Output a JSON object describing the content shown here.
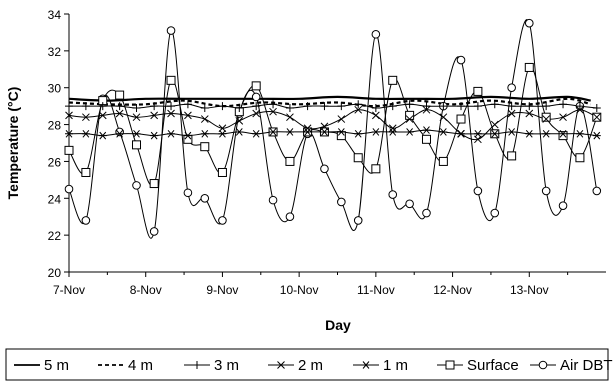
{
  "chart_data": {
    "type": "line",
    "title": "",
    "xlabel": "Day",
    "ylabel": "Temperature (°C)",
    "ylim": [
      20,
      34
    ],
    "yticks": [
      20,
      22,
      24,
      26,
      28,
      30,
      32,
      34
    ],
    "xlim": [
      7,
      14
    ],
    "xticks": [
      {
        "x": 7,
        "label": "7-Nov"
      },
      {
        "x": 8,
        "label": "8-Nov"
      },
      {
        "x": 9,
        "label": "9-Nov"
      },
      {
        "x": 10,
        "label": "10-Nov"
      },
      {
        "x": 11,
        "label": "11-Nov"
      },
      {
        "x": 12,
        "label": "12-Nov"
      },
      {
        "x": 13,
        "label": "13-Nov"
      }
    ],
    "grid": false,
    "legend_position": "bottom",
    "series": [
      {
        "name": "5 m",
        "style": "solid",
        "marker": "none",
        "width": 2.2,
        "x": [
          7.0,
          7.5,
          8.0,
          8.5,
          9.0,
          9.5,
          10.0,
          10.5,
          11.0,
          11.5,
          12.0,
          12.5,
          13.0,
          13.5,
          13.8
        ],
        "y": [
          29.4,
          29.3,
          29.4,
          29.4,
          29.4,
          29.4,
          29.4,
          29.5,
          29.4,
          29.4,
          29.4,
          29.5,
          29.4,
          29.5,
          29.3
        ]
      },
      {
        "name": "4 m",
        "style": "dashed",
        "marker": "none",
        "width": 2.2,
        "x": [
          7.0,
          7.5,
          8.0,
          8.5,
          9.0,
          9.5,
          10.0,
          10.5,
          11.0,
          11.5,
          12.0,
          12.5,
          13.0,
          13.5,
          13.8
        ],
        "y": [
          29.2,
          29.1,
          29.1,
          29.3,
          29.0,
          29.2,
          29.1,
          29.2,
          29.0,
          29.3,
          29.1,
          29.3,
          29.1,
          29.4,
          29.1
        ]
      },
      {
        "name": "3 m",
        "style": "solid",
        "marker": "plus",
        "width": 1,
        "x": [
          7.0,
          7.22,
          7.44,
          7.66,
          7.88,
          8.11,
          8.33,
          8.55,
          8.77,
          9.0,
          9.22,
          9.44,
          9.66,
          9.88,
          10.11,
          10.33,
          10.55,
          10.77,
          11.0,
          11.22,
          11.44,
          11.66,
          11.88,
          12.11,
          12.33,
          12.55,
          12.77,
          13.0,
          13.22,
          13.44,
          13.66,
          13.88
        ],
        "y": [
          29.0,
          29.0,
          29.0,
          29.0,
          28.9,
          29.0,
          29.0,
          29.1,
          28.9,
          29.0,
          28.9,
          29.0,
          29.1,
          28.9,
          29.0,
          29.0,
          29.0,
          29.1,
          28.9,
          29.0,
          29.1,
          29.0,
          29.0,
          29.0,
          29.0,
          29.1,
          29.0,
          29.0,
          29.0,
          29.1,
          29.0,
          28.9
        ]
      },
      {
        "name": "2 m",
        "style": "solid",
        "marker": "x",
        "width": 1,
        "x": [
          7.0,
          7.22,
          7.44,
          7.66,
          7.88,
          8.11,
          8.33,
          8.55,
          8.77,
          9.0,
          9.22,
          9.44,
          9.66,
          9.88,
          10.11,
          10.33,
          10.55,
          10.77,
          11.0,
          11.22,
          11.44,
          11.66,
          11.88,
          12.11,
          12.33,
          12.55,
          12.77,
          13.0,
          13.22,
          13.44,
          13.66,
          13.88
        ],
        "y": [
          28.5,
          28.4,
          28.5,
          28.6,
          28.4,
          28.5,
          28.6,
          28.5,
          28.3,
          27.8,
          28.2,
          28.6,
          28.7,
          28.4,
          27.8,
          27.9,
          28.3,
          28.8,
          28.5,
          27.8,
          28.3,
          28.8,
          28.4,
          27.5,
          27.2,
          28.0,
          28.6,
          28.6,
          28.3,
          28.4,
          28.8,
          28.4
        ]
      },
      {
        "name": "1 m",
        "style": "solid",
        "marker": "star",
        "width": 1,
        "x": [
          7.0,
          7.22,
          7.44,
          7.66,
          7.88,
          8.11,
          8.33,
          8.55,
          8.77,
          9.0,
          9.22,
          9.44,
          9.66,
          9.88,
          10.11,
          10.33,
          10.55,
          10.77,
          11.0,
          11.22,
          11.44,
          11.66,
          11.88,
          12.11,
          12.33,
          12.55,
          12.77,
          13.0,
          13.22,
          13.44,
          13.66,
          13.88
        ],
        "y": [
          27.5,
          27.5,
          27.4,
          27.5,
          27.5,
          27.4,
          27.5,
          27.4,
          27.5,
          27.5,
          27.6,
          27.5,
          27.6,
          27.6,
          27.6,
          27.6,
          27.6,
          27.5,
          27.6,
          27.6,
          27.6,
          27.7,
          27.6,
          27.5,
          27.5,
          27.5,
          27.6,
          27.5,
          27.5,
          27.5,
          27.5,
          27.4
        ]
      },
      {
        "name": "Surface",
        "style": "solid",
        "marker": "square",
        "width": 1,
        "x": [
          7.0,
          7.22,
          7.44,
          7.66,
          7.88,
          8.11,
          8.33,
          8.55,
          8.77,
          9.0,
          9.22,
          9.44,
          9.66,
          9.88,
          10.11,
          10.33,
          10.55,
          10.77,
          11.0,
          11.22,
          11.44,
          11.66,
          11.88,
          12.11,
          12.33,
          12.55,
          12.77,
          13.0,
          13.22,
          13.44,
          13.66,
          13.88
        ],
        "y": [
          26.6,
          25.4,
          29.3,
          29.6,
          26.9,
          24.8,
          30.4,
          27.2,
          26.8,
          25.4,
          28.7,
          30.1,
          27.6,
          26.0,
          27.6,
          27.6,
          27.4,
          26.2,
          25.6,
          30.4,
          28.5,
          27.2,
          26.0,
          28.3,
          29.8,
          27.5,
          26.3,
          31.1,
          28.4,
          27.4,
          26.2,
          28.4
        ]
      },
      {
        "name": "Air DBT",
        "style": "solid",
        "marker": "circle",
        "width": 1,
        "x": [
          7.0,
          7.22,
          7.44,
          7.66,
          7.88,
          8.11,
          8.33,
          8.55,
          8.77,
          9.0,
          9.22,
          9.44,
          9.66,
          9.88,
          10.11,
          10.33,
          10.55,
          10.77,
          11.0,
          11.22,
          11.44,
          11.66,
          11.88,
          12.11,
          12.33,
          12.55,
          12.77,
          13.0,
          13.22,
          13.44,
          13.66,
          13.88
        ],
        "y": [
          24.5,
          22.8,
          29.4,
          27.6,
          24.7,
          22.2,
          33.1,
          24.3,
          24.0,
          22.8,
          28.6,
          29.5,
          23.9,
          23.0,
          27.5,
          25.6,
          23.8,
          22.8,
          32.9,
          24.2,
          23.7,
          23.2,
          29.0,
          31.5,
          24.4,
          23.2,
          30.0,
          33.5,
          24.4,
          23.6,
          29.0,
          24.4
        ]
      }
    ]
  }
}
